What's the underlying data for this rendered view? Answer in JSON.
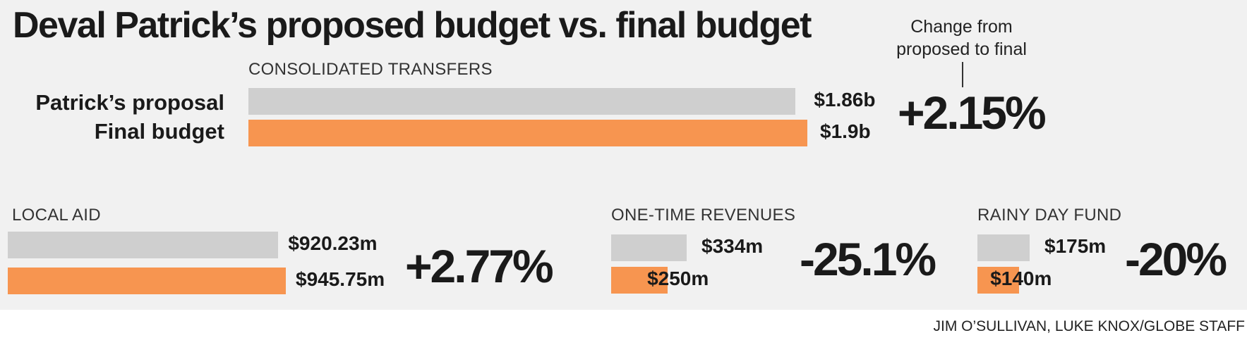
{
  "title": "Deval Patrick’s proposed budget vs. final budget",
  "change_header": "Change from proposed to final",
  "row_labels": {
    "proposal": "Patrick’s proposal",
    "final": "Final budget"
  },
  "credit": "JIM O’SULLIVAN, LUKE KNOX/GLOBE STAFF",
  "colors": {
    "proposal": "#cfcfcf",
    "final": "#f79550",
    "background": "#f1f1f1"
  },
  "chart_data": [
    {
      "type": "bar",
      "title": "CONSOLIDATED TRANSFERS",
      "categories": [
        "Patrick’s proposal",
        "Final budget"
      ],
      "values": [
        1860,
        1900
      ],
      "unit": "millions of dollars",
      "value_labels": [
        "$1.86b",
        "$1.9b"
      ],
      "change": "+2.15%"
    },
    {
      "type": "bar",
      "title": "LOCAL AID",
      "categories": [
        "Patrick’s proposal",
        "Final budget"
      ],
      "values": [
        920.23,
        945.75
      ],
      "unit": "millions of dollars",
      "value_labels": [
        "$920.23m",
        "$945.75m"
      ],
      "change": "+2.77%"
    },
    {
      "type": "bar",
      "title": "ONE-TIME REVENUES",
      "categories": [
        "Patrick’s proposal",
        "Final budget"
      ],
      "values": [
        334,
        250
      ],
      "unit": "millions of dollars",
      "value_labels": [
        "$334m",
        "$250m"
      ],
      "change": "-25.1%"
    },
    {
      "type": "bar",
      "title": "RAINY DAY FUND",
      "categories": [
        "Patrick’s proposal",
        "Final budget"
      ],
      "values": [
        175,
        140
      ],
      "unit": "millions of dollars",
      "value_labels": [
        "$175m",
        "$140m"
      ],
      "change": "-20%"
    }
  ]
}
